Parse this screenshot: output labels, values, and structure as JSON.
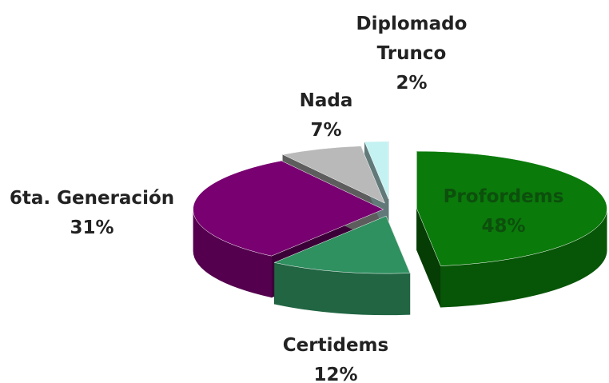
{
  "chart_data": {
    "type": "pie3d",
    "categories": [
      "Profordems",
      "Certidems",
      "6ta. Generación",
      "Nada",
      "Diplomado Trunco"
    ],
    "values": [
      48,
      12,
      31,
      7,
      2
    ],
    "value_labels": [
      "48%",
      "12%",
      "31%",
      "7%",
      "2%"
    ],
    "colors": [
      "#0a7a0a",
      "#2f9060",
      "#780070",
      "#b9b9b9",
      "#c4f2f2"
    ]
  }
}
